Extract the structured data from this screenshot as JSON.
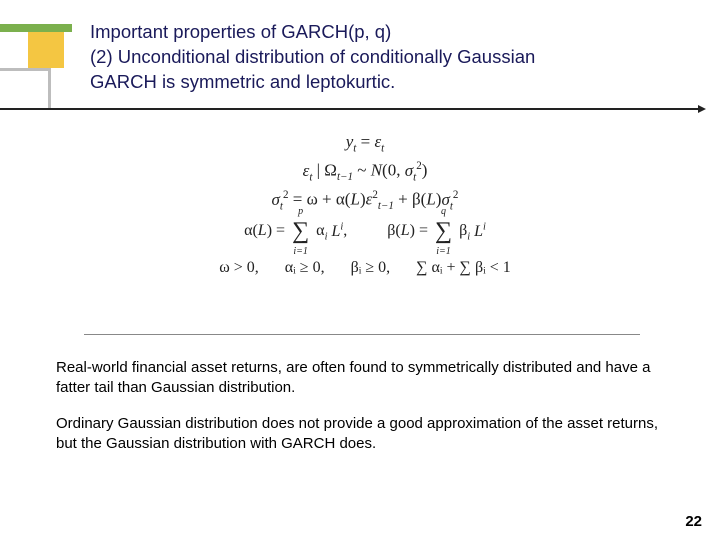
{
  "title_line1": "Important properties of GARCH(p, q)",
  "title_line2": "(2) Unconditional distribution of conditionally Gaussian",
  "title_line3": "GARCH is symmetric and leptokurtic.",
  "formula": {
    "eq1": "yₑ = εₑ",
    "eq2_lhs": "ε",
    "eq2_cond": " | Ω",
    "eq2_rhs": " ~ N(0, σ",
    "eq3": "σ",
    "eq3_rhs": " = ω + α(L)ε",
    "eq3_tail": " + β(L)σ",
    "alpha_poly_lhs": "α(L) = ",
    "alpha_poly_term": "α",
    "alpha_poly_L": " L",
    "alpha_sum_upper": "p",
    "alpha_sum_lower": "i=1",
    "beta_poly_lhs": "β(L) = ",
    "beta_poly_term": "β",
    "beta_sum_upper": "q",
    "beta_sum_lower": "i=1",
    "cond_omega": "ω > 0,",
    "cond_alpha": "αᵢ ≥ 0,",
    "cond_beta": "βᵢ ≥ 0,",
    "cond_sum": "∑ αᵢ + ∑ βᵢ < 1"
  },
  "paragraph1": "Real-world financial asset returns, are often found to symmetrically distributed and have a fatter tail than Gaussian distribution.",
  "paragraph2": "Ordinary Gaussian distribution does not provide a good approximation of the asset returns, but the Gaussian distribution with GARCH does.",
  "page_number": "22",
  "colors": {
    "title": "#1a1a5a",
    "accent_green": "#7bb04d",
    "accent_yellow": "#f4c642",
    "accent_grey": "#bdbdbd"
  }
}
